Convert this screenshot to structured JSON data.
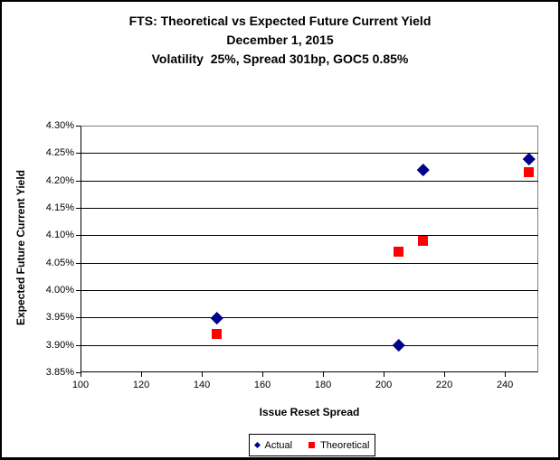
{
  "title": {
    "line1": "FTS: Theoretical vs Expected Future Current Yield",
    "line2": "December 1, 2015",
    "line3": "Volatility  25%, Spread 301bp, GOC5 0.85%"
  },
  "chart_data": {
    "type": "scatter",
    "title": "FTS: Theoretical vs Expected Future Current Yield",
    "subtitle": "December 1, 2015",
    "subtitle2": "Volatility 25%, Spread 301bp, GOC5 0.85%",
    "xlabel": "Issue Reset Spread",
    "ylabel": "Expected Future Current Yield",
    "xlim": [
      100,
      251
    ],
    "ylim": [
      3.85,
      4.3
    ],
    "x_ticks": [
      100,
      120,
      140,
      160,
      180,
      200,
      220,
      240
    ],
    "x_tick_labels": [
      "100",
      "120",
      "140",
      "160",
      "180",
      "200",
      "220",
      "240"
    ],
    "y_ticks": [
      3.85,
      3.9,
      3.95,
      4.0,
      4.05,
      4.1,
      4.15,
      4.2,
      4.25,
      4.3
    ],
    "y_tick_labels": [
      "3.85%",
      "3.90%",
      "3.95%",
      "4.00%",
      "4.05%",
      "4.10%",
      "4.15%",
      "4.20%",
      "4.25%",
      "4.30%"
    ],
    "grid": "horizontal",
    "legend_position": "bottom-center",
    "series": [
      {
        "name": "Actual",
        "marker": "diamond",
        "color": "#00008B",
        "points": [
          {
            "x": 145,
            "y": 3.95
          },
          {
            "x": 205,
            "y": 3.9
          },
          {
            "x": 213,
            "y": 4.22
          },
          {
            "x": 248,
            "y": 4.24
          }
        ]
      },
      {
        "name": "Theoretical",
        "marker": "square",
        "color": "#FF0000",
        "points": [
          {
            "x": 145,
            "y": 3.92
          },
          {
            "x": 205,
            "y": 4.07
          },
          {
            "x": 213,
            "y": 4.09
          },
          {
            "x": 248,
            "y": 4.215
          }
        ]
      }
    ]
  },
  "colors": {
    "actual": "#00008B",
    "theoretical": "#FF0000",
    "gridline": "#000000",
    "plot_border": "#808080",
    "text": "#000000",
    "background": "#FFFFFF"
  }
}
